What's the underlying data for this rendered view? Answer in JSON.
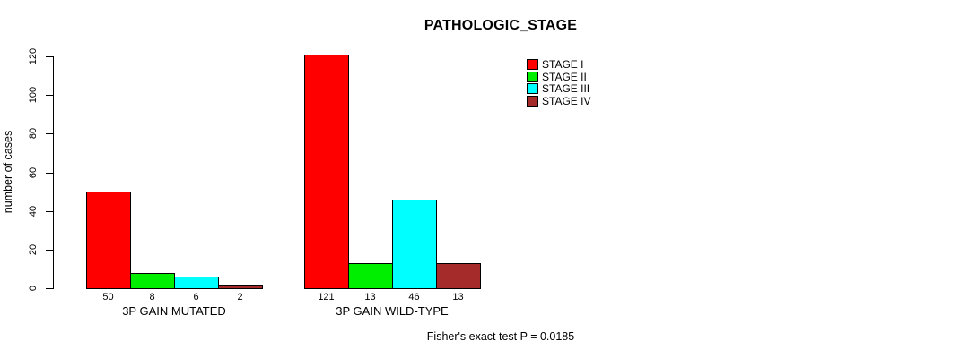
{
  "title": "PATHOLOGIC_STAGE",
  "y_axis_label": "number of cases",
  "annotation": "Fisher's exact test P = 0.0185",
  "chart_data": {
    "type": "bar",
    "title": "PATHOLOGIC_STAGE",
    "xlabel": "",
    "ylabel": "number of cases",
    "categories": [
      "3P GAIN MUTATED",
      "3P GAIN WILD-TYPE"
    ],
    "series": [
      {
        "name": "STAGE I",
        "color": "#ff0000",
        "values": [
          50,
          121
        ]
      },
      {
        "name": "STAGE II",
        "color": "#00ee00",
        "values": [
          8,
          13
        ]
      },
      {
        "name": "STAGE III",
        "color": "#00ffff",
        "values": [
          6,
          46
        ]
      },
      {
        "name": "STAGE IV",
        "color": "#a52a2a",
        "values": [
          2,
          13
        ]
      }
    ],
    "ylim": [
      0,
      120
    ],
    "yticks": [
      0,
      20,
      40,
      60,
      80,
      100,
      120
    ],
    "grid": false,
    "legend_position": "top-right-inside",
    "bar_value_labels": true,
    "bar_borders": "#000000",
    "annotation": "Fisher's exact test P = 0.0185"
  }
}
